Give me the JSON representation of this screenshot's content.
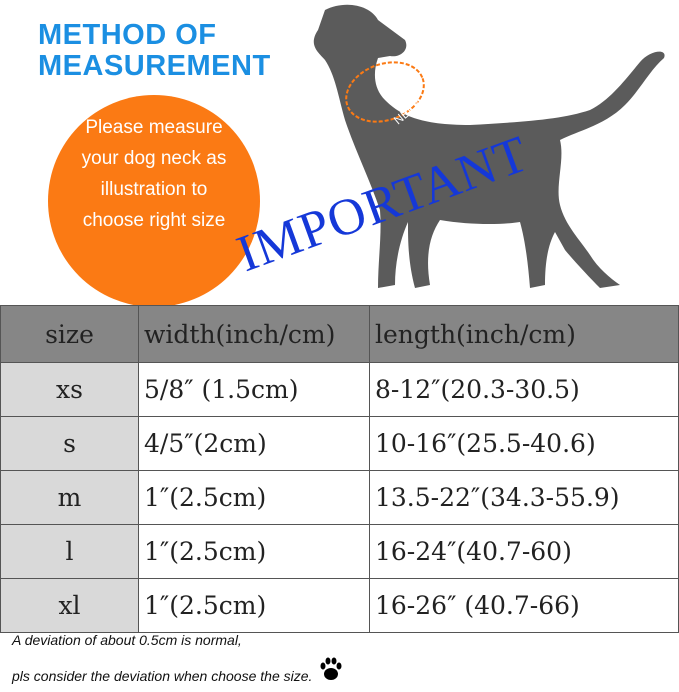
{
  "title": {
    "line1": "METHOD OF",
    "line2": "MEASUREMENT"
  },
  "circle_text": "Please measure your dog neck as illustration to choose right size",
  "neck_label": "NECK",
  "important_text": "IMPORTANT",
  "colors": {
    "title": "#1b8fe2",
    "circle": "#fb7a14",
    "dog": "#5b5b5b",
    "important": "#1538d8",
    "header": "#868686"
  },
  "table": {
    "headers": [
      "size",
      "width(inch/cm)",
      "length(inch/cm)"
    ],
    "rows": [
      [
        "xs",
        "5/8″ (1.5cm)",
        "8-12″(20.3-30.5)"
      ],
      [
        "s",
        "4/5″(2cm)",
        "10-16″(25.5-40.6)"
      ],
      [
        "m",
        "1″(2.5cm)",
        "13.5-22″(34.3-55.9)"
      ],
      [
        "l",
        "1″(2.5cm)",
        "16-24″(40.7-60)"
      ],
      [
        "xl",
        "1″(2.5cm)",
        "16-26″ (40.7-66)"
      ]
    ]
  },
  "notes": [
    "A deviation of about 0.5cm is normal,",
    "pls consider the deviation when choose the size."
  ]
}
